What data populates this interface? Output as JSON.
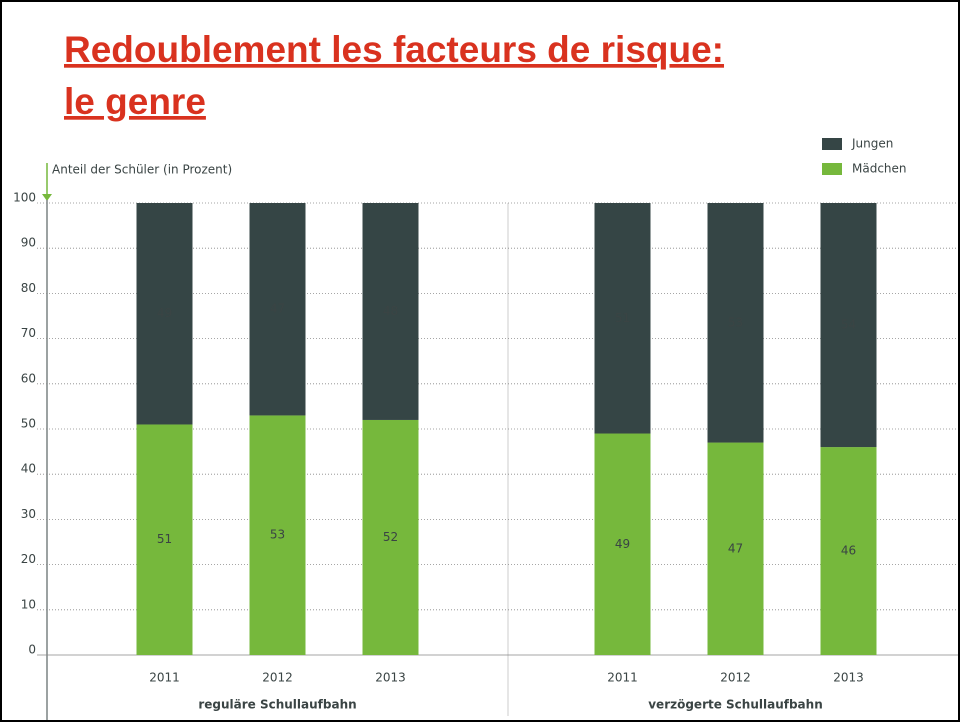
{
  "chart_data": {
    "type": "stacked_bar",
    "title": [
      "Redoublement les facteurs de risque:",
      "le genre"
    ],
    "y_label": "Anteil der Schüler (in Prozent)",
    "categories": [
      "2011",
      "2012",
      "2013",
      "2011",
      "2012",
      "2013"
    ],
    "groups": [
      "reguläre Schullaufbahn",
      "verzögerte Schullaufbahn"
    ],
    "series": [
      {
        "name": "Mädchen",
        "color": "#76b83c",
        "label_color": "#3a4444",
        "values": [
          51,
          53,
          52,
          49,
          47,
          46
        ]
      },
      {
        "name": "Jungen",
        "color": "#354545",
        "label_color": "#7cc243",
        "values": [
          49,
          47,
          48,
          51,
          53,
          54
        ]
      }
    ],
    "ylim": [
      0,
      100
    ],
    "yticks": [
      0,
      10,
      20,
      30,
      40,
      50,
      60,
      70,
      80,
      90,
      100
    ],
    "grid": true
  }
}
